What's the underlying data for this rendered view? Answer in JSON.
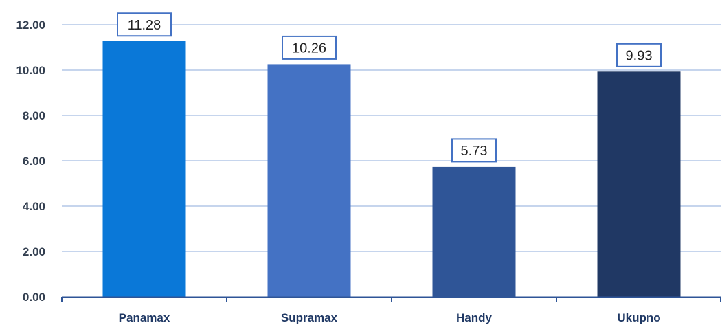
{
  "chart_data": {
    "type": "bar",
    "title": "",
    "xlabel": "",
    "ylabel": "",
    "categories": [
      "Panamax",
      "Supramax",
      "Handy",
      "Ukupno"
    ],
    "values": [
      11.28,
      10.26,
      5.73,
      9.93
    ],
    "data_labels": [
      "11.28",
      "10.26",
      "5.73",
      "9.93"
    ],
    "bar_colors": [
      "#0a78d8",
      "#4472c4",
      "#2f5597",
      "#203864"
    ],
    "ylim": [
      0,
      12
    ],
    "yticks": [
      0,
      2,
      4,
      6,
      8,
      10,
      12
    ],
    "ytick_labels": [
      "0.00",
      "2.00",
      "4.00",
      "6.00",
      "8.00",
      "10.00",
      "12.00"
    ],
    "grid": true,
    "gridline_color": "#b4c7e7",
    "label_box_border_color": "#4472c4",
    "legend": "none"
  }
}
